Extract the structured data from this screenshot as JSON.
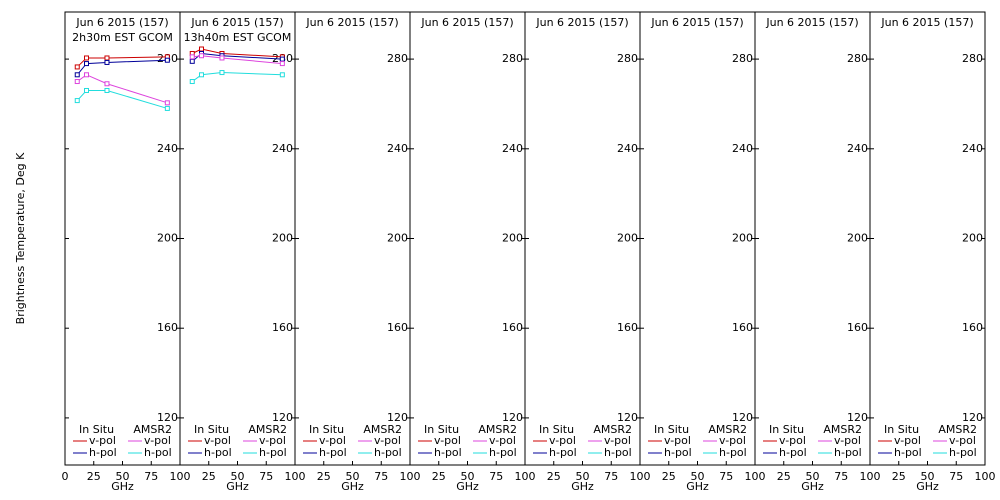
{
  "chart_data": [
    {
      "type": "line",
      "title": "Jun 6 2015 (157)",
      "subtitle": "2h30m EST GCOM",
      "ylabel": "Brightness Temperature, Deg K",
      "xlabel": "GHz",
      "x": [
        10.65,
        18.7,
        36.5,
        89
      ],
      "xlim": [
        0,
        100
      ],
      "xticks": [
        0,
        25,
        50,
        75,
        100
      ],
      "ylim": [
        99,
        301
      ],
      "yticks": [
        120,
        160,
        200,
        240,
        280
      ],
      "series_groups": [
        {
          "name": "In Situ",
          "series": [
            {
              "name": "v-pol",
              "color": "#cc0000",
              "values": [
                276.5,
                280.5,
                280.5,
                281
              ]
            },
            {
              "name": "h-pol",
              "color": "#000099",
              "values": [
                273,
                278,
                278.5,
                279.5
              ]
            }
          ]
        },
        {
          "name": "AMSR2",
          "series": [
            {
              "name": "v-pol",
              "color": "#dd44dd",
              "values": [
                270,
                273,
                269,
                260.5
              ]
            },
            {
              "name": "h-pol",
              "color": "#22dddd",
              "values": [
                261.5,
                266,
                266,
                258
              ]
            }
          ]
        }
      ]
    },
    {
      "type": "line",
      "title": "Jun 6 2015 (157)",
      "subtitle": "13h40m EST GCOM",
      "xlabel": "GHz",
      "x": [
        10.65,
        18.7,
        36.5,
        89
      ],
      "xlim": [
        0,
        100
      ],
      "xticks": [
        25,
        50,
        75,
        100
      ],
      "ylim": [
        99,
        301
      ],
      "yticks": [
        120,
        160,
        200,
        240,
        280
      ],
      "series_groups": [
        {
          "name": "In Situ",
          "series": [
            {
              "name": "v-pol",
              "color": "#cc0000",
              "values": [
                282.5,
                284.5,
                282.5,
                281
              ]
            },
            {
              "name": "h-pol",
              "color": "#000099",
              "values": [
                279,
                282.5,
                281.5,
                280
              ]
            }
          ]
        },
        {
          "name": "AMSR2",
          "series": [
            {
              "name": "v-pol",
              "color": "#dd44dd",
              "values": [
                281,
                281.5,
                280.5,
                278
              ]
            },
            {
              "name": "h-pol",
              "color": "#22dddd",
              "values": [
                270,
                273,
                274,
                273
              ]
            }
          ]
        }
      ]
    },
    {
      "type": "line",
      "title": "Jun 6 2015 (157)",
      "xlabel": "GHz",
      "x": [],
      "xlim": [
        0,
        100
      ],
      "xticks": [
        25,
        50,
        75,
        100
      ],
      "ylim": [
        99,
        301
      ],
      "yticks": [
        120,
        160,
        200,
        240,
        280
      ],
      "series_groups": [
        {
          "name": "In Situ",
          "series": [
            {
              "name": "v-pol",
              "color": "#cc0000",
              "values": []
            },
            {
              "name": "h-pol",
              "color": "#000099",
              "values": []
            }
          ]
        },
        {
          "name": "AMSR2",
          "series": [
            {
              "name": "v-pol",
              "color": "#dd44dd",
              "values": []
            },
            {
              "name": "h-pol",
              "color": "#22dddd",
              "values": []
            }
          ]
        }
      ]
    },
    {
      "type": "line",
      "title": "Jun 6 2015 (157)",
      "xlabel": "GHz",
      "x": [],
      "xlim": [
        0,
        100
      ],
      "xticks": [
        25,
        50,
        75,
        100
      ],
      "ylim": [
        99,
        301
      ],
      "yticks": [
        120,
        160,
        200,
        240,
        280
      ],
      "series_groups": [
        {
          "name": "In Situ",
          "series": [
            {
              "name": "v-pol",
              "color": "#cc0000",
              "values": []
            },
            {
              "name": "h-pol",
              "color": "#000099",
              "values": []
            }
          ]
        },
        {
          "name": "AMSR2",
          "series": [
            {
              "name": "v-pol",
              "color": "#dd44dd",
              "values": []
            },
            {
              "name": "h-pol",
              "color": "#22dddd",
              "values": []
            }
          ]
        }
      ]
    },
    {
      "type": "line",
      "title": "Jun 6 2015 (157)",
      "xlabel": "GHz",
      "x": [],
      "xlim": [
        0,
        100
      ],
      "xticks": [
        25,
        50,
        75,
        100
      ],
      "ylim": [
        99,
        301
      ],
      "yticks": [
        120,
        160,
        200,
        240,
        280
      ],
      "series_groups": [
        {
          "name": "In Situ",
          "series": [
            {
              "name": "v-pol",
              "color": "#cc0000",
              "values": []
            },
            {
              "name": "h-pol",
              "color": "#000099",
              "values": []
            }
          ]
        },
        {
          "name": "AMSR2",
          "series": [
            {
              "name": "v-pol",
              "color": "#dd44dd",
              "values": []
            },
            {
              "name": "h-pol",
              "color": "#22dddd",
              "values": []
            }
          ]
        }
      ]
    },
    {
      "type": "line",
      "title": "Jun 6 2015 (157)",
      "xlabel": "GHz",
      "x": [],
      "xlim": [
        0,
        100
      ],
      "xticks": [
        25,
        50,
        75,
        100
      ],
      "ylim": [
        99,
        301
      ],
      "yticks": [
        120,
        160,
        200,
        240,
        280
      ],
      "series_groups": [
        {
          "name": "In Situ",
          "series": [
            {
              "name": "v-pol",
              "color": "#cc0000",
              "values": []
            },
            {
              "name": "h-pol",
              "color": "#000099",
              "values": []
            }
          ]
        },
        {
          "name": "AMSR2",
          "series": [
            {
              "name": "v-pol",
              "color": "#dd44dd",
              "values": []
            },
            {
              "name": "h-pol",
              "color": "#22dddd",
              "values": []
            }
          ]
        }
      ]
    },
    {
      "type": "line",
      "title": "Jun 6 2015 (157)",
      "xlabel": "GHz",
      "x": [],
      "xlim": [
        0,
        100
      ],
      "xticks": [
        25,
        50,
        75,
        100
      ],
      "ylim": [
        99,
        301
      ],
      "yticks": [
        120,
        160,
        200,
        240,
        280
      ],
      "series_groups": [
        {
          "name": "In Situ",
          "series": [
            {
              "name": "v-pol",
              "color": "#cc0000",
              "values": []
            },
            {
              "name": "h-pol",
              "color": "#000099",
              "values": []
            }
          ]
        },
        {
          "name": "AMSR2",
          "series": [
            {
              "name": "v-pol",
              "color": "#dd44dd",
              "values": []
            },
            {
              "name": "h-pol",
              "color": "#22dddd",
              "values": []
            }
          ]
        }
      ]
    },
    {
      "type": "line",
      "title": "Jun 6 2015 (157)",
      "xlabel": "GHz",
      "x": [],
      "xlim": [
        0,
        100
      ],
      "xticks": [
        25,
        50,
        75,
        100
      ],
      "ylim": [
        99,
        301
      ],
      "yticks": [
        120,
        160,
        200,
        240,
        280
      ],
      "series_groups": [
        {
          "name": "In Situ",
          "series": [
            {
              "name": "v-pol",
              "color": "#cc0000",
              "values": []
            },
            {
              "name": "h-pol",
              "color": "#000099",
              "values": []
            }
          ]
        },
        {
          "name": "AMSR2",
          "series": [
            {
              "name": "v-pol",
              "color": "#dd44dd",
              "values": []
            },
            {
              "name": "h-pol",
              "color": "#22dddd",
              "values": []
            }
          ]
        }
      ]
    }
  ]
}
